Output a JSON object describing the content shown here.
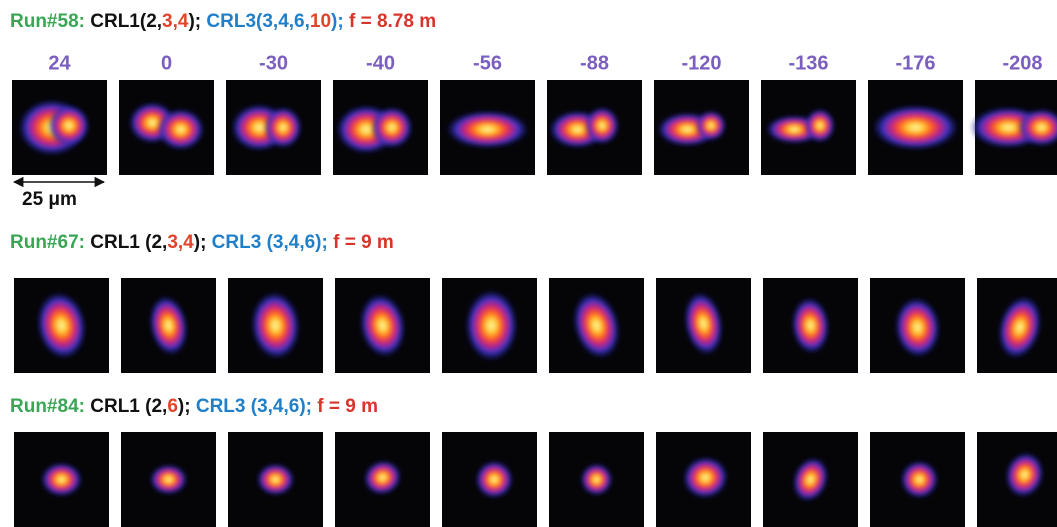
{
  "column_labels": [
    "24",
    "0",
    "-30",
    "-40",
    "-56",
    "-88",
    "-120",
    "-136",
    "-176",
    "-208"
  ],
  "scale_bar": "25 μm",
  "rows": [
    {
      "title": [
        {
          "text": "Run#58:",
          "color": "#3aa655"
        },
        {
          "text": " CRL1(2,",
          "color": "#111111"
        },
        {
          "text": "3,4",
          "color": "#e0452b"
        },
        {
          "text": ");",
          "color": "#111111"
        },
        {
          "text": " CRL3(3,4,6,",
          "color": "#1f7fc8"
        },
        {
          "text": "10",
          "color": "#e0452b"
        },
        {
          "text": ");",
          "color": "#1f7fc8"
        },
        {
          "text": " f = 8.78 m",
          "color": "#d9342b"
        }
      ]
    },
    {
      "title": [
        {
          "text": "Run#67:",
          "color": "#3aa655"
        },
        {
          "text": " CRL1 (2,",
          "color": "#111111"
        },
        {
          "text": "3,4",
          "color": "#e0452b"
        },
        {
          "text": ");",
          "color": "#111111"
        },
        {
          "text": " CRL3 (3,4,6);",
          "color": "#1f7fc8"
        },
        {
          "text": " f = 9 m",
          "color": "#d9342b"
        }
      ]
    },
    {
      "title": [
        {
          "text": "Run#84:",
          "color": "#3aa655"
        },
        {
          "text": " CRL1 (2,",
          "color": "#111111"
        },
        {
          "text": "6",
          "color": "#e0452b"
        },
        {
          "text": ");",
          "color": "#111111"
        },
        {
          "text": " CRL3 (3,4,6);",
          "color": "#1f7fc8"
        },
        {
          "text": " f = 9 m",
          "color": "#d9342b"
        }
      ]
    }
  ]
}
